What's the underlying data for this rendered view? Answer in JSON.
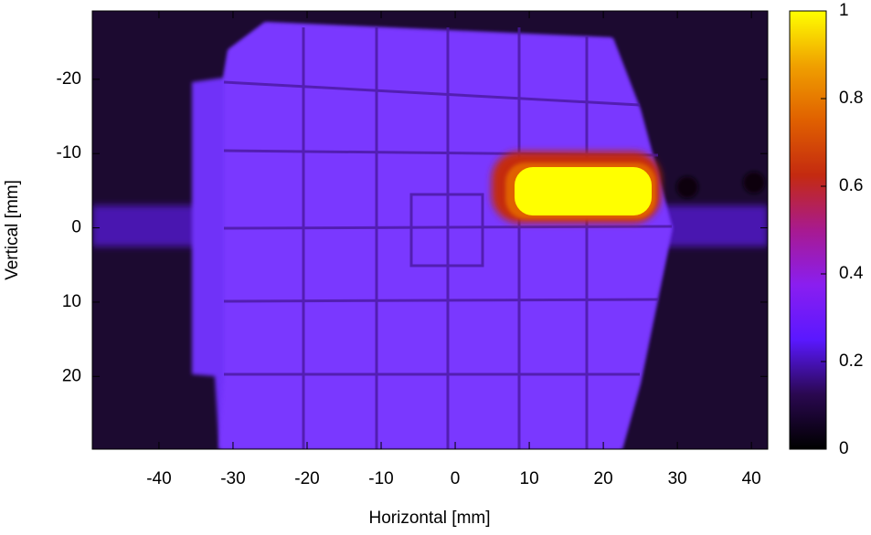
{
  "chart_data": {
    "type": "heatmap",
    "xlabel": "Horizontal [mm]",
    "ylabel": "Vertical [mm]",
    "xlim": [
      -49.0,
      42.2
    ],
    "xticks": [
      -40,
      -30,
      -20,
      -10,
      0,
      10,
      20,
      30,
      40
    ],
    "ylim": [
      29.8,
      -29.2
    ],
    "yticks": [
      -20,
      -10,
      0,
      10,
      20
    ],
    "clim": [
      0,
      1
    ],
    "cticks": [
      0,
      0.2,
      0.4,
      0.6,
      0.8,
      1
    ],
    "colormap": [
      "#000000",
      "#2a0850",
      "#5a18ff",
      "#8a1ef0",
      "#a81a90",
      "#c42a10",
      "#e06000",
      "#f0a000",
      "#ffff00"
    ]
  }
}
